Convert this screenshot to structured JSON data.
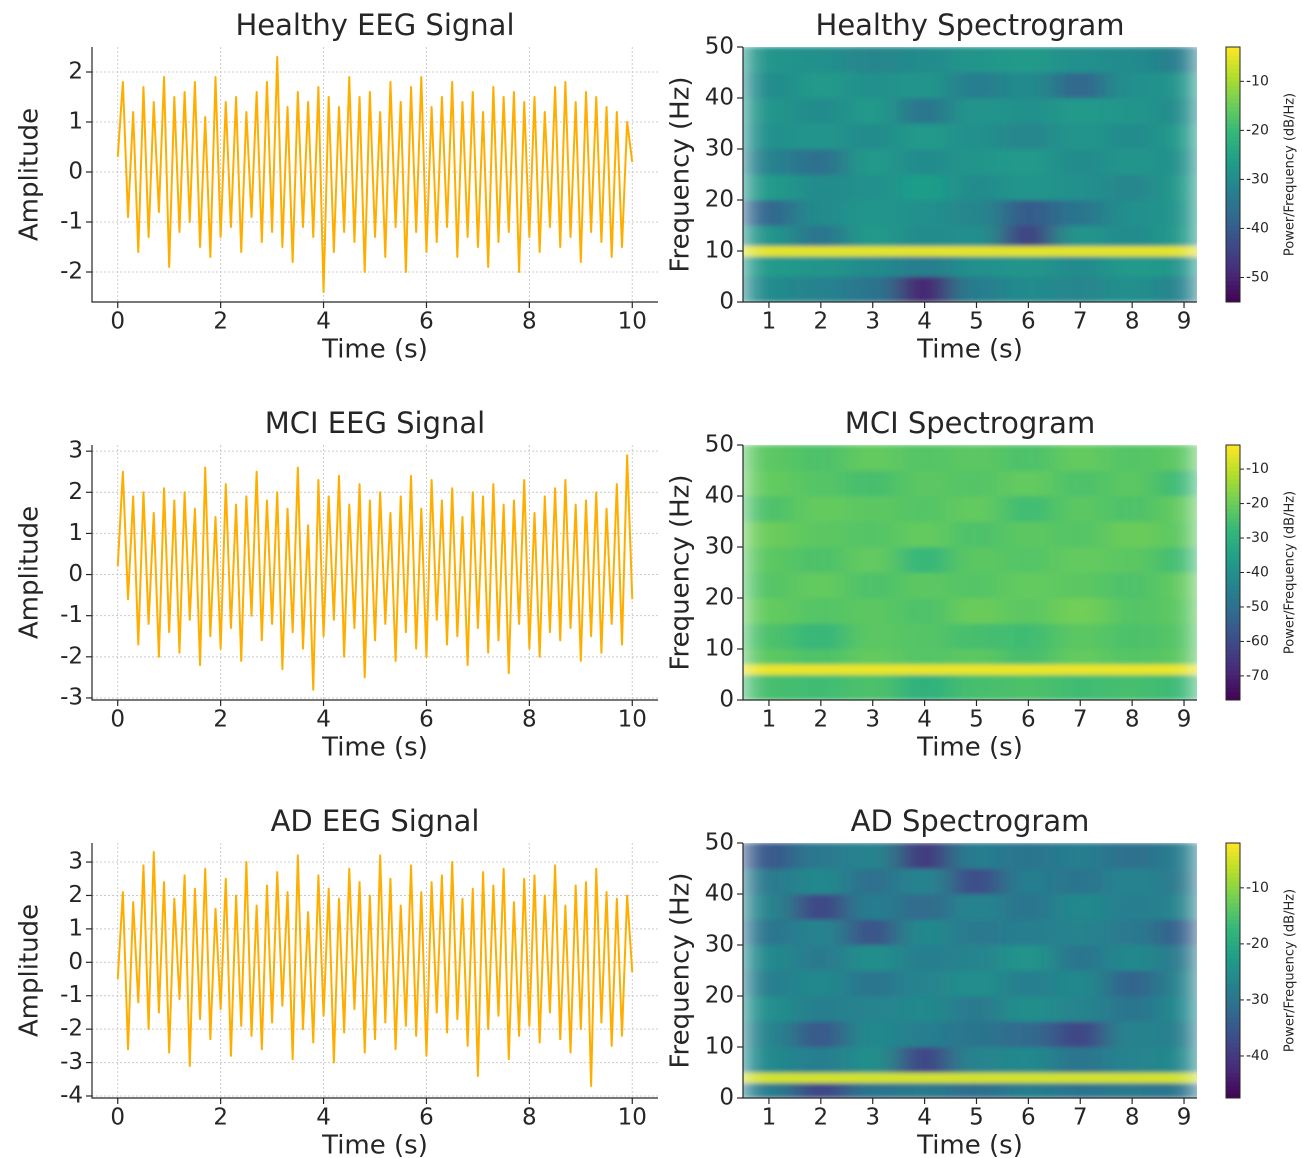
{
  "chart_data": [
    {
      "type": "line",
      "title": "Healthy EEG Signal",
      "xlabel": "Time (s)",
      "ylabel": "Amplitude",
      "color": "#ffae00",
      "grid": true,
      "xlim": [
        -0.5,
        10.5
      ],
      "ylim": [
        -2.6,
        2.5
      ],
      "xticks": [
        0,
        2,
        4,
        6,
        8,
        10
      ],
      "yticks": [
        -2,
        -1,
        0,
        1,
        2
      ],
      "x": [
        0,
        0.1,
        0.2,
        0.3,
        0.4,
        0.5,
        0.6,
        0.7,
        0.8,
        0.9,
        1,
        1.1,
        1.2,
        1.3,
        1.4,
        1.5,
        1.6,
        1.7,
        1.8,
        1.9,
        2,
        2.1,
        2.2,
        2.3,
        2.4,
        2.5,
        2.6,
        2.7,
        2.8,
        2.9,
        3,
        3.1,
        3.2,
        3.3,
        3.4,
        3.5,
        3.6,
        3.7,
        3.8,
        3.9,
        4,
        4.1,
        4.2,
        4.3,
        4.4,
        4.5,
        4.6,
        4.7,
        4.8,
        4.9,
        5,
        5.1,
        5.2,
        5.3,
        5.4,
        5.5,
        5.6,
        5.7,
        5.8,
        5.9,
        6,
        6.1,
        6.2,
        6.3,
        6.4,
        6.5,
        6.6,
        6.7,
        6.8,
        6.9,
        7,
        7.1,
        7.2,
        7.3,
        7.4,
        7.5,
        7.6,
        7.7,
        7.8,
        7.9,
        8,
        8.1,
        8.2,
        8.3,
        8.4,
        8.5,
        8.6,
        8.7,
        8.8,
        8.9,
        9,
        9.1,
        9.2,
        9.3,
        9.4,
        9.5,
        9.6,
        9.7,
        9.8,
        9.9,
        10
      ],
      "values": [
        0.3,
        1.8,
        -0.9,
        1.2,
        -1.6,
        1.7,
        -1.3,
        1.4,
        -0.8,
        1.9,
        -1.9,
        1.5,
        -1.2,
        1.6,
        -1.0,
        1.8,
        -1.5,
        1.1,
        -1.7,
        1.9,
        -1.3,
        1.4,
        -1.1,
        1.5,
        -1.6,
        1.2,
        -0.9,
        1.6,
        -1.4,
        1.8,
        -1.2,
        2.3,
        -1.5,
        1.3,
        -1.8,
        1.6,
        -1.1,
        1.4,
        -1.3,
        1.7,
        -2.4,
        1.5,
        -1.6,
        1.3,
        -1.2,
        1.9,
        -1.4,
        1.5,
        -2.0,
        1.6,
        -1.3,
        1.2,
        -1.7,
        1.8,
        -1.1,
        1.4,
        -2.0,
        1.7,
        -1.2,
        1.9,
        -1.6,
        1.3,
        -1.4,
        1.5,
        -1.1,
        1.8,
        -1.7,
        1.4,
        -1.3,
        1.6,
        -1.5,
        1.2,
        -1.9,
        1.7,
        -1.4,
        1.5,
        -1.2,
        1.6,
        -2.0,
        1.4,
        -1.3,
        1.5,
        -1.6,
        1.2,
        -1.1,
        1.7,
        -1.5,
        1.8,
        -1.3,
        1.4,
        -1.8,
        1.6,
        -1.2,
        1.5,
        -1.4,
        1.3,
        -1.7,
        1.2,
        -1.5,
        1.0,
        0.2
      ]
    },
    {
      "type": "heatmap",
      "title": "Healthy Spectrogram",
      "xlabel": "Time (s)",
      "ylabel": "Frequency (Hz)",
      "colormap": "viridis",
      "colorbar_label": "Power/Frequency (dB/Hz)",
      "clim": [
        -55,
        -3
      ],
      "cticks": [
        -10,
        -20,
        -30,
        -40,
        -50
      ],
      "xlim": [
        0.5,
        9.25
      ],
      "ylim": [
        0,
        50
      ],
      "xticks": [
        1,
        2,
        3,
        4,
        5,
        6,
        7,
        8,
        9
      ],
      "yticks": [
        0,
        10,
        20,
        30,
        40,
        50
      ],
      "x_edges": [
        0.5,
        1.5,
        2.5,
        3.5,
        4.5,
        5.5,
        6.5,
        7.5,
        8.5,
        9.25
      ],
      "y_edges": [
        0,
        5,
        9,
        11,
        15,
        20,
        25,
        30,
        35,
        40,
        45,
        50
      ],
      "values": [
        [
          -30,
          -32,
          -35,
          -50,
          -33,
          -30,
          -31,
          -29,
          -32
        ],
        [
          -27,
          -28,
          -30,
          -33,
          -29,
          -28,
          -30,
          -27,
          -28
        ],
        [
          -5,
          -5,
          -5,
          -5,
          -5,
          -5,
          -5,
          -5,
          -5
        ],
        [
          -28,
          -35,
          -27,
          -30,
          -29,
          -45,
          -28,
          -30,
          -27
        ],
        [
          -38,
          -30,
          -28,
          -29,
          -31,
          -40,
          -35,
          -29,
          -28
        ],
        [
          -27,
          -30,
          -29,
          -26,
          -30,
          -28,
          -29,
          -31,
          -27
        ],
        [
          -32,
          -36,
          -27,
          -30,
          -28,
          -27,
          -30,
          -28,
          -29
        ],
        [
          -29,
          -28,
          -30,
          -27,
          -29,
          -31,
          -28,
          -30,
          -27
        ],
        [
          -28,
          -30,
          -27,
          -35,
          -28,
          -29,
          -27,
          -28,
          -30
        ],
        [
          -30,
          -27,
          -29,
          -28,
          -33,
          -30,
          -38,
          -29,
          -28
        ],
        [
          -28,
          -29,
          -31,
          -30,
          -28,
          -27,
          -29,
          -30,
          -33
        ]
      ]
    },
    {
      "type": "line",
      "title": "MCI EEG Signal",
      "xlabel": "Time (s)",
      "ylabel": "Amplitude",
      "color": "#ffae00",
      "grid": true,
      "xlim": [
        -0.5,
        10.5
      ],
      "ylim": [
        -3.05,
        3.15
      ],
      "xticks": [
        0,
        2,
        4,
        6,
        8,
        10
      ],
      "yticks": [
        -3,
        -2,
        -1,
        0,
        1,
        2,
        3
      ],
      "x": [
        0,
        0.1,
        0.2,
        0.3,
        0.4,
        0.5,
        0.6,
        0.7,
        0.8,
        0.9,
        1,
        1.1,
        1.2,
        1.3,
        1.4,
        1.5,
        1.6,
        1.7,
        1.8,
        1.9,
        2,
        2.1,
        2.2,
        2.3,
        2.4,
        2.5,
        2.6,
        2.7,
        2.8,
        2.9,
        3,
        3.1,
        3.2,
        3.3,
        3.4,
        3.5,
        3.6,
        3.7,
        3.8,
        3.9,
        4,
        4.1,
        4.2,
        4.3,
        4.4,
        4.5,
        4.6,
        4.7,
        4.8,
        4.9,
        5,
        5.1,
        5.2,
        5.3,
        5.4,
        5.5,
        5.6,
        5.7,
        5.8,
        5.9,
        6,
        6.1,
        6.2,
        6.3,
        6.4,
        6.5,
        6.6,
        6.7,
        6.8,
        6.9,
        7,
        7.1,
        7.2,
        7.3,
        7.4,
        7.5,
        7.6,
        7.7,
        7.8,
        7.9,
        8,
        8.1,
        8.2,
        8.3,
        8.4,
        8.5,
        8.6,
        8.7,
        8.8,
        8.9,
        9,
        9.1,
        9.2,
        9.3,
        9.4,
        9.5,
        9.6,
        9.7,
        9.8,
        9.9,
        10
      ],
      "values": [
        0.2,
        2.5,
        -0.6,
        1.9,
        -1.7,
        2.0,
        -1.2,
        1.5,
        -2.0,
        2.1,
        -1.4,
        1.8,
        -1.9,
        2.0,
        -1.1,
        1.6,
        -2.2,
        2.6,
        -1.5,
        1.4,
        -1.8,
        2.2,
        -1.3,
        1.7,
        -2.1,
        1.9,
        -1.0,
        2.5,
        -1.6,
        1.8,
        -1.2,
        2.0,
        -2.3,
        1.6,
        -1.4,
        2.6,
        -1.8,
        1.2,
        -2.8,
        2.3,
        -1.5,
        1.9,
        -1.1,
        2.4,
        -2.0,
        1.7,
        -1.3,
        2.2,
        -2.5,
        1.8,
        -1.6,
        2.0,
        -1.2,
        1.5,
        -2.1,
        1.9,
        -1.4,
        2.4,
        -1.8,
        1.6,
        -2.0,
        2.3,
        -1.1,
        1.8,
        -1.7,
        2.1,
        -1.5,
        1.4,
        -2.2,
        2.0,
        -1.3,
        1.9,
        -1.9,
        2.2,
        -1.6,
        1.7,
        -2.4,
        1.8,
        -1.2,
        2.3,
        -1.8,
        1.5,
        -2.0,
        1.9,
        -1.4,
        2.1,
        -1.6,
        2.3,
        -1.3,
        1.7,
        -2.1,
        1.8,
        -1.5,
        2.0,
        -1.9,
        1.6,
        -1.2,
        2.2,
        -1.7,
        2.9,
        -0.6
      ]
    },
    {
      "type": "heatmap",
      "title": "MCI Spectrogram",
      "xlabel": "Time (s)",
      "ylabel": "Frequency (Hz)",
      "colormap": "viridis",
      "colorbar_label": "Power/Frequency (dB/Hz)",
      "clim": [
        -77,
        -3
      ],
      "cticks": [
        -10,
        -20,
        -30,
        -40,
        -50,
        -60,
        -70
      ],
      "xlim": [
        0.5,
        9.25
      ],
      "ylim": [
        0,
        50
      ],
      "xticks": [
        1,
        2,
        3,
        4,
        5,
        6,
        7,
        8,
        9
      ],
      "yticks": [
        0,
        10,
        20,
        30,
        40,
        50
      ],
      "x_edges": [
        0.5,
        1.5,
        2.5,
        3.5,
        4.5,
        5.5,
        6.5,
        7.5,
        8.5,
        9.25
      ],
      "y_edges": [
        0,
        5,
        7,
        10,
        15,
        20,
        25,
        30,
        35,
        40,
        45,
        50
      ],
      "values": [
        [
          -25,
          -26,
          -24,
          -30,
          -25,
          -24,
          -26,
          -25,
          -27
        ],
        [
          -5,
          -5,
          -5,
          -5,
          -5,
          -5,
          -5,
          -5,
          -5
        ],
        [
          -22,
          -24,
          -21,
          -23,
          -22,
          -25,
          -21,
          -23,
          -22
        ],
        [
          -24,
          -28,
          -22,
          -23,
          -25,
          -26,
          -22,
          -24,
          -23
        ],
        [
          -21,
          -23,
          -22,
          -24,
          -20,
          -22,
          -19,
          -23,
          -22
        ],
        [
          -23,
          -21,
          -24,
          -22,
          -23,
          -21,
          -22,
          -24,
          -21
        ],
        [
          -22,
          -24,
          -21,
          -28,
          -22,
          -23,
          -21,
          -22,
          -26
        ],
        [
          -20,
          -22,
          -23,
          -21,
          -24,
          -22,
          -23,
          -20,
          -22
        ],
        [
          -24,
          -21,
          -22,
          -23,
          -21,
          -26,
          -22,
          -24,
          -21
        ],
        [
          -21,
          -23,
          -25,
          -22,
          -23,
          -21,
          -24,
          -22,
          -27
        ],
        [
          -22,
          -24,
          -21,
          -23,
          -22,
          -24,
          -21,
          -23,
          -22
        ]
      ]
    },
    {
      "type": "line",
      "title": "AD EEG Signal",
      "xlabel": "Time (s)",
      "ylabel": "Amplitude",
      "color": "#ffae00",
      "grid": true,
      "xlim": [
        -0.5,
        10.5
      ],
      "ylim": [
        -4.06,
        3.57
      ],
      "xticks": [
        0,
        2,
        4,
        6,
        8,
        10
      ],
      "yticks": [
        -4,
        -3,
        -2,
        -1,
        0,
        1,
        2,
        3
      ],
      "x": [
        0,
        0.1,
        0.2,
        0.3,
        0.4,
        0.5,
        0.6,
        0.7,
        0.8,
        0.9,
        1,
        1.1,
        1.2,
        1.3,
        1.4,
        1.5,
        1.6,
        1.7,
        1.8,
        1.9,
        2,
        2.1,
        2.2,
        2.3,
        2.4,
        2.5,
        2.6,
        2.7,
        2.8,
        2.9,
        3,
        3.1,
        3.2,
        3.3,
        3.4,
        3.5,
        3.6,
        3.7,
        3.8,
        3.9,
        4,
        4.1,
        4.2,
        4.3,
        4.4,
        4.5,
        4.6,
        4.7,
        4.8,
        4.9,
        5,
        5.1,
        5.2,
        5.3,
        5.4,
        5.5,
        5.6,
        5.7,
        5.8,
        5.9,
        6,
        6.1,
        6.2,
        6.3,
        6.4,
        6.5,
        6.6,
        6.7,
        6.8,
        6.9,
        7,
        7.1,
        7.2,
        7.3,
        7.4,
        7.5,
        7.6,
        7.7,
        7.8,
        7.9,
        8,
        8.1,
        8.2,
        8.3,
        8.4,
        8.5,
        8.6,
        8.7,
        8.8,
        8.9,
        9,
        9.1,
        9.2,
        9.3,
        9.4,
        9.5,
        9.6,
        9.7,
        9.8,
        9.9,
        10
      ],
      "values": [
        -0.5,
        2.1,
        -2.6,
        1.8,
        -1.2,
        2.9,
        -2.0,
        3.3,
        -1.5,
        2.4,
        -2.7,
        1.9,
        -1.1,
        2.6,
        -3.1,
        2.2,
        -1.7,
        2.8,
        -2.3,
        1.6,
        -1.4,
        2.5,
        -2.8,
        2.0,
        -1.9,
        3.0,
        -2.2,
        1.7,
        -2.6,
        2.3,
        -1.8,
        2.7,
        -1.3,
        2.1,
        -2.9,
        3.2,
        -2.0,
        1.5,
        -2.4,
        2.6,
        -1.6,
        2.2,
        -3.0,
        1.9,
        -2.1,
        2.8,
        -1.4,
        2.4,
        -2.7,
        2.0,
        -2.3,
        3.2,
        -1.8,
        2.5,
        -2.6,
        1.7,
        -1.9,
        2.9,
        -2.2,
        2.1,
        -2.8,
        2.4,
        -1.5,
        2.6,
        -2.1,
        3.0,
        -1.7,
        1.9,
        -2.5,
        2.2,
        -3.4,
        2.7,
        -2.0,
        2.3,
        -1.6,
        2.8,
        -2.9,
        1.8,
        -2.2,
        2.5,
        -1.9,
        2.6,
        -2.4,
        2.0,
        -1.5,
        2.9,
        -2.3,
        1.7,
        -2.7,
        2.3,
        -2.0,
        2.4,
        -3.7,
        2.8,
        -1.8,
        2.1,
        -2.5,
        1.9,
        -2.2,
        2.0,
        -0.3
      ]
    },
    {
      "type": "heatmap",
      "title": "AD Spectrogram",
      "xlabel": "Time (s)",
      "ylabel": "Frequency (Hz)",
      "colormap": "viridis",
      "colorbar_label": "Power/Frequency (dB/Hz)",
      "clim": [
        -47.5,
        -2
      ],
      "cticks": [
        -10,
        -20,
        -30,
        -40
      ],
      "xlim": [
        0.5,
        9.25
      ],
      "ylim": [
        0,
        50
      ],
      "xticks": [
        1,
        2,
        3,
        4,
        5,
        6,
        7,
        8,
        9
      ],
      "yticks": [
        0,
        10,
        20,
        30,
        40,
        50
      ],
      "x_edges": [
        0.5,
        1.5,
        2.5,
        3.5,
        4.5,
        5.5,
        6.5,
        7.5,
        8.5,
        9.25
      ],
      "y_edges": [
        0,
        3,
        5,
        10,
        15,
        20,
        25,
        30,
        35,
        40,
        45,
        50
      ],
      "values": [
        [
          -28,
          -38,
          -30,
          -29,
          -31,
          -28,
          -30,
          -29,
          -30
        ],
        [
          -5,
          -5,
          -5,
          -5,
          -5,
          -5,
          -5,
          -5,
          -5
        ],
        [
          -26,
          -28,
          -25,
          -38,
          -27,
          -26,
          -30,
          -27,
          -26
        ],
        [
          -27,
          -35,
          -26,
          -28,
          -30,
          -32,
          -38,
          -27,
          -28
        ],
        [
          -25,
          -28,
          -27,
          -26,
          -29,
          -25,
          -27,
          -30,
          -26
        ],
        [
          -28,
          -26,
          -30,
          -27,
          -25,
          -28,
          -26,
          -33,
          -27
        ],
        [
          -26,
          -29,
          -25,
          -28,
          -27,
          -24,
          -30,
          -26,
          -29
        ],
        [
          -30,
          -27,
          -36,
          -26,
          -29,
          -28,
          -27,
          -29,
          -34
        ],
        [
          -27,
          -38,
          -28,
          -32,
          -27,
          -30,
          -26,
          -28,
          -27
        ],
        [
          -29,
          -26,
          -31,
          -27,
          -37,
          -28,
          -30,
          -27,
          -29
        ],
        [
          -35,
          -29,
          -27,
          -40,
          -28,
          -30,
          -28,
          -31,
          -28
        ]
      ]
    }
  ]
}
